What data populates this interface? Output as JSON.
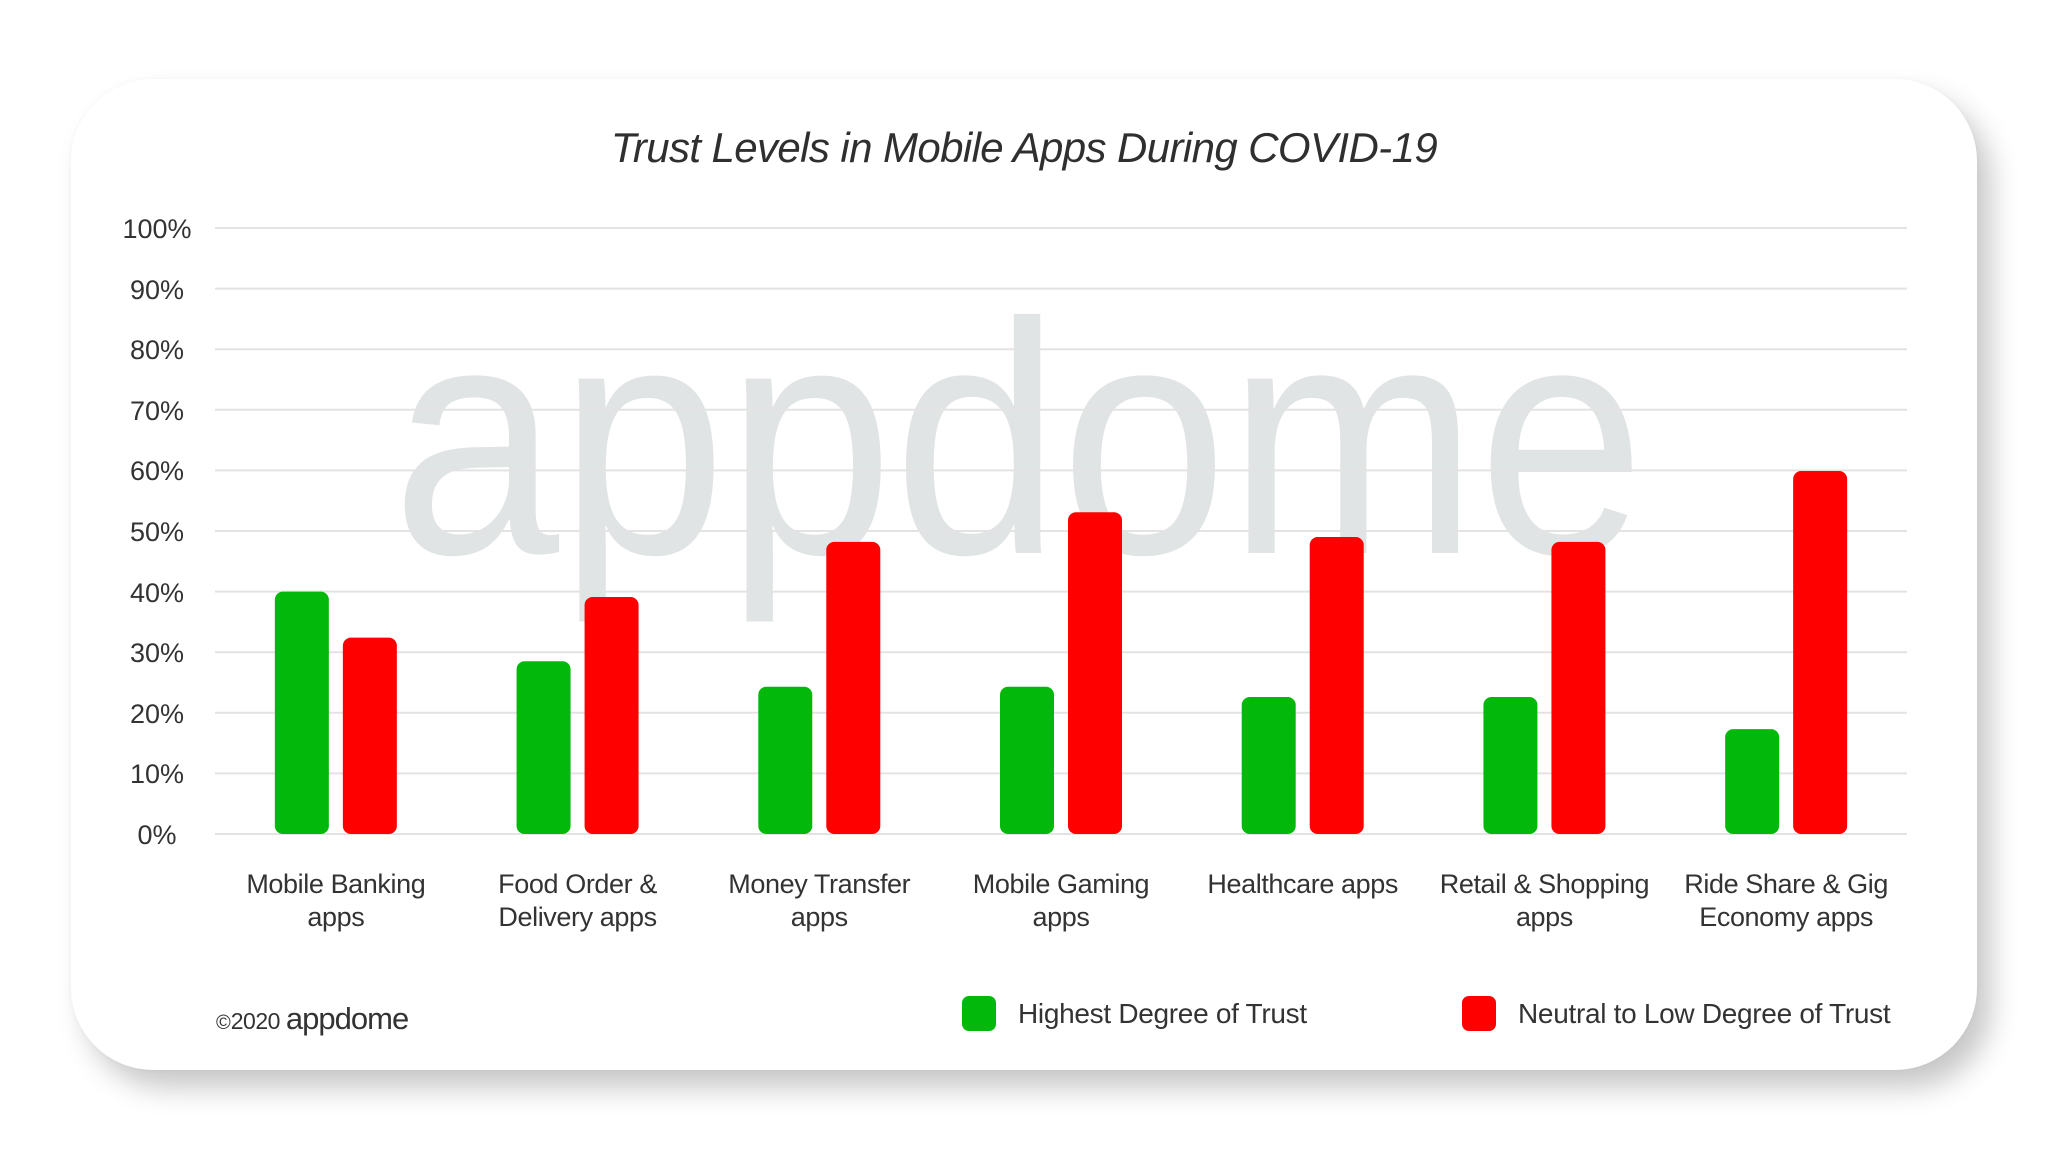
{
  "title": "Trust Levels in Mobile Apps During COVID-19",
  "watermark": "appdome",
  "footer": {
    "copyright_symbol": "©",
    "year": "2020",
    "brand": "appdome"
  },
  "colors": {
    "highest_trust": "#02b90b",
    "neutral_low_trust": "#ff0000",
    "gridline": "#e3e3e3",
    "watermark": "#e1e4e5",
    "text": "#333333"
  },
  "legend": [
    {
      "label": "Highest Degree of Trust",
      "color": "#02b90b"
    },
    {
      "label": "Neutral to Low Degree of Trust",
      "color": "#ff0000"
    }
  ],
  "y_ticks": [
    "100%",
    "90%",
    "80%",
    "70%",
    "60%",
    "50%",
    "40%",
    "30%",
    "20%",
    "10%",
    "0%"
  ],
  "x_labels": [
    {
      "line1": "Mobile Banking",
      "line2": "apps"
    },
    {
      "line1": "Food Order &",
      "line2": "Delivery apps"
    },
    {
      "line1": "Money Transfer",
      "line2": "apps"
    },
    {
      "line1": "Mobile Gaming",
      "line2": "apps"
    },
    {
      "line1": "Healthcare apps",
      "line2": ""
    },
    {
      "line1": "Retail & Shopping",
      "line2": "apps"
    },
    {
      "line1": "Ride Share & Gig",
      "line2": "Economy apps"
    }
  ],
  "chart_data": {
    "type": "bar",
    "title": "Trust Levels in Mobile Apps During COVID-19",
    "xlabel": "",
    "ylabel": "",
    "ylim": [
      0,
      100
    ],
    "y_tick_format": "percent",
    "grid": true,
    "legend_position": "bottom-right",
    "categories": [
      "Mobile Banking apps",
      "Food Order & Delivery apps",
      "Money Transfer apps",
      "Mobile Gaming apps",
      "Healthcare apps",
      "Retail & Shopping apps",
      "Ride Share & Gig Economy apps"
    ],
    "series": [
      {
        "name": "Highest Degree of Trust",
        "color": "#02b90b",
        "values": [
          40,
          28.5,
          24.3,
          24.3,
          22.6,
          22.6,
          17.3
        ]
      },
      {
        "name": "Neutral to Low Degree of Trust",
        "color": "#ff0000",
        "values": [
          32.4,
          39.1,
          48.2,
          53.1,
          49.0,
          48.2,
          59.9
        ]
      }
    ]
  }
}
